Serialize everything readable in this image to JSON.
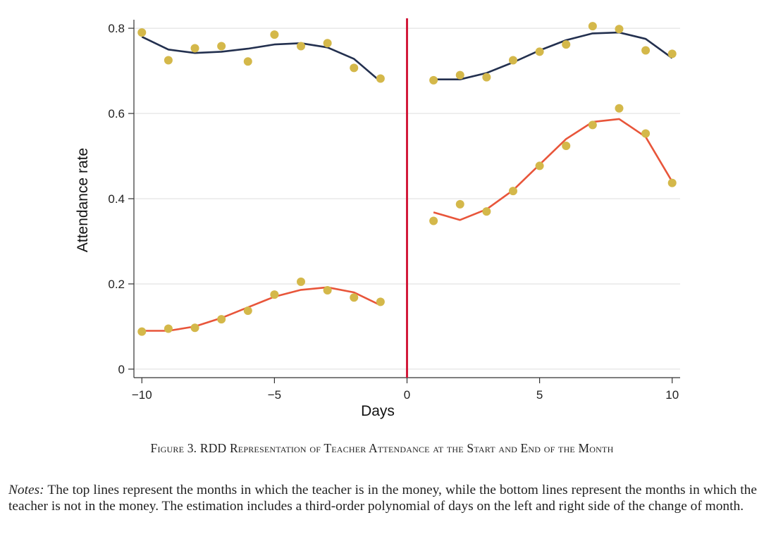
{
  "chart_data": {
    "type": "scatter",
    "xlabel": "Days",
    "ylabel": "Attendance rate",
    "xlim": [
      -10.3,
      10.3
    ],
    "ylim": [
      -0.02,
      0.82
    ],
    "xticks": [
      -10,
      -5,
      0,
      5,
      10
    ],
    "xtick_labels": [
      "−10",
      "−5",
      "0",
      "5",
      "10"
    ],
    "yticks": [
      0,
      0.2,
      0.4,
      0.6,
      0.8
    ],
    "ytick_labels": [
      "0",
      "0.2",
      "0.4",
      "0.6",
      "0.8"
    ],
    "grid": true,
    "cutoff": 0,
    "colors": {
      "points": "#d4b84a",
      "top_fit": "#23304f",
      "bottom_fit": "#e8553a",
      "cutoff": "#d21a3a",
      "grid": "#dddddd"
    },
    "series": [
      {
        "x": [
          -10,
          -9,
          -8,
          -7,
          -6,
          -5,
          -4,
          -3,
          -2,
          -1
        ],
        "points": [
          0.79,
          0.725,
          0.753,
          0.758,
          0.722,
          0.785,
          0.758,
          0.765,
          0.707,
          0.682
        ],
        "fit": [
          0.78,
          0.75,
          0.742,
          0.745,
          0.752,
          0.762,
          0.765,
          0.755,
          0.728,
          0.675
        ]
      },
      {
        "x": [
          1,
          2,
          3,
          4,
          5,
          6,
          7,
          8,
          9,
          10
        ],
        "points": [
          0.678,
          0.69,
          0.685,
          0.725,
          0.745,
          0.762,
          0.805,
          0.798,
          0.748,
          0.74
        ],
        "fit": [
          0.68,
          0.68,
          0.695,
          0.72,
          0.748,
          0.772,
          0.788,
          0.79,
          0.775,
          0.73
        ]
      },
      {
        "x": [
          -10,
          -9,
          -8,
          -7,
          -6,
          -5,
          -4,
          -3,
          -2,
          -1
        ],
        "points": [
          0.088,
          0.095,
          0.097,
          0.117,
          0.137,
          0.175,
          0.205,
          0.185,
          0.168,
          0.158
        ],
        "fit": [
          0.09,
          0.09,
          0.1,
          0.12,
          0.145,
          0.17,
          0.186,
          0.192,
          0.18,
          0.15
        ]
      },
      {
        "x": [
          1,
          2,
          3,
          4,
          5,
          6,
          7,
          8,
          9,
          10
        ],
        "points": [
          0.348,
          0.387,
          0.37,
          0.418,
          0.477,
          0.524,
          0.573,
          0.612,
          0.553,
          0.437
        ],
        "fit": [
          0.368,
          0.35,
          0.375,
          0.42,
          0.48,
          0.54,
          0.58,
          0.587,
          0.545,
          0.44
        ]
      }
    ]
  },
  "caption": "Figure 3. RDD Representation of Teacher Attendance at the Start and End of the Month",
  "notes": {
    "label": "Notes:",
    "text": " The top lines represent the months in which the teacher is in the money, while the bottom lines represent the months in which the teacher is not in the money. The estimation includes a third-order polynomial of days on the left and right side of the change of month."
  }
}
